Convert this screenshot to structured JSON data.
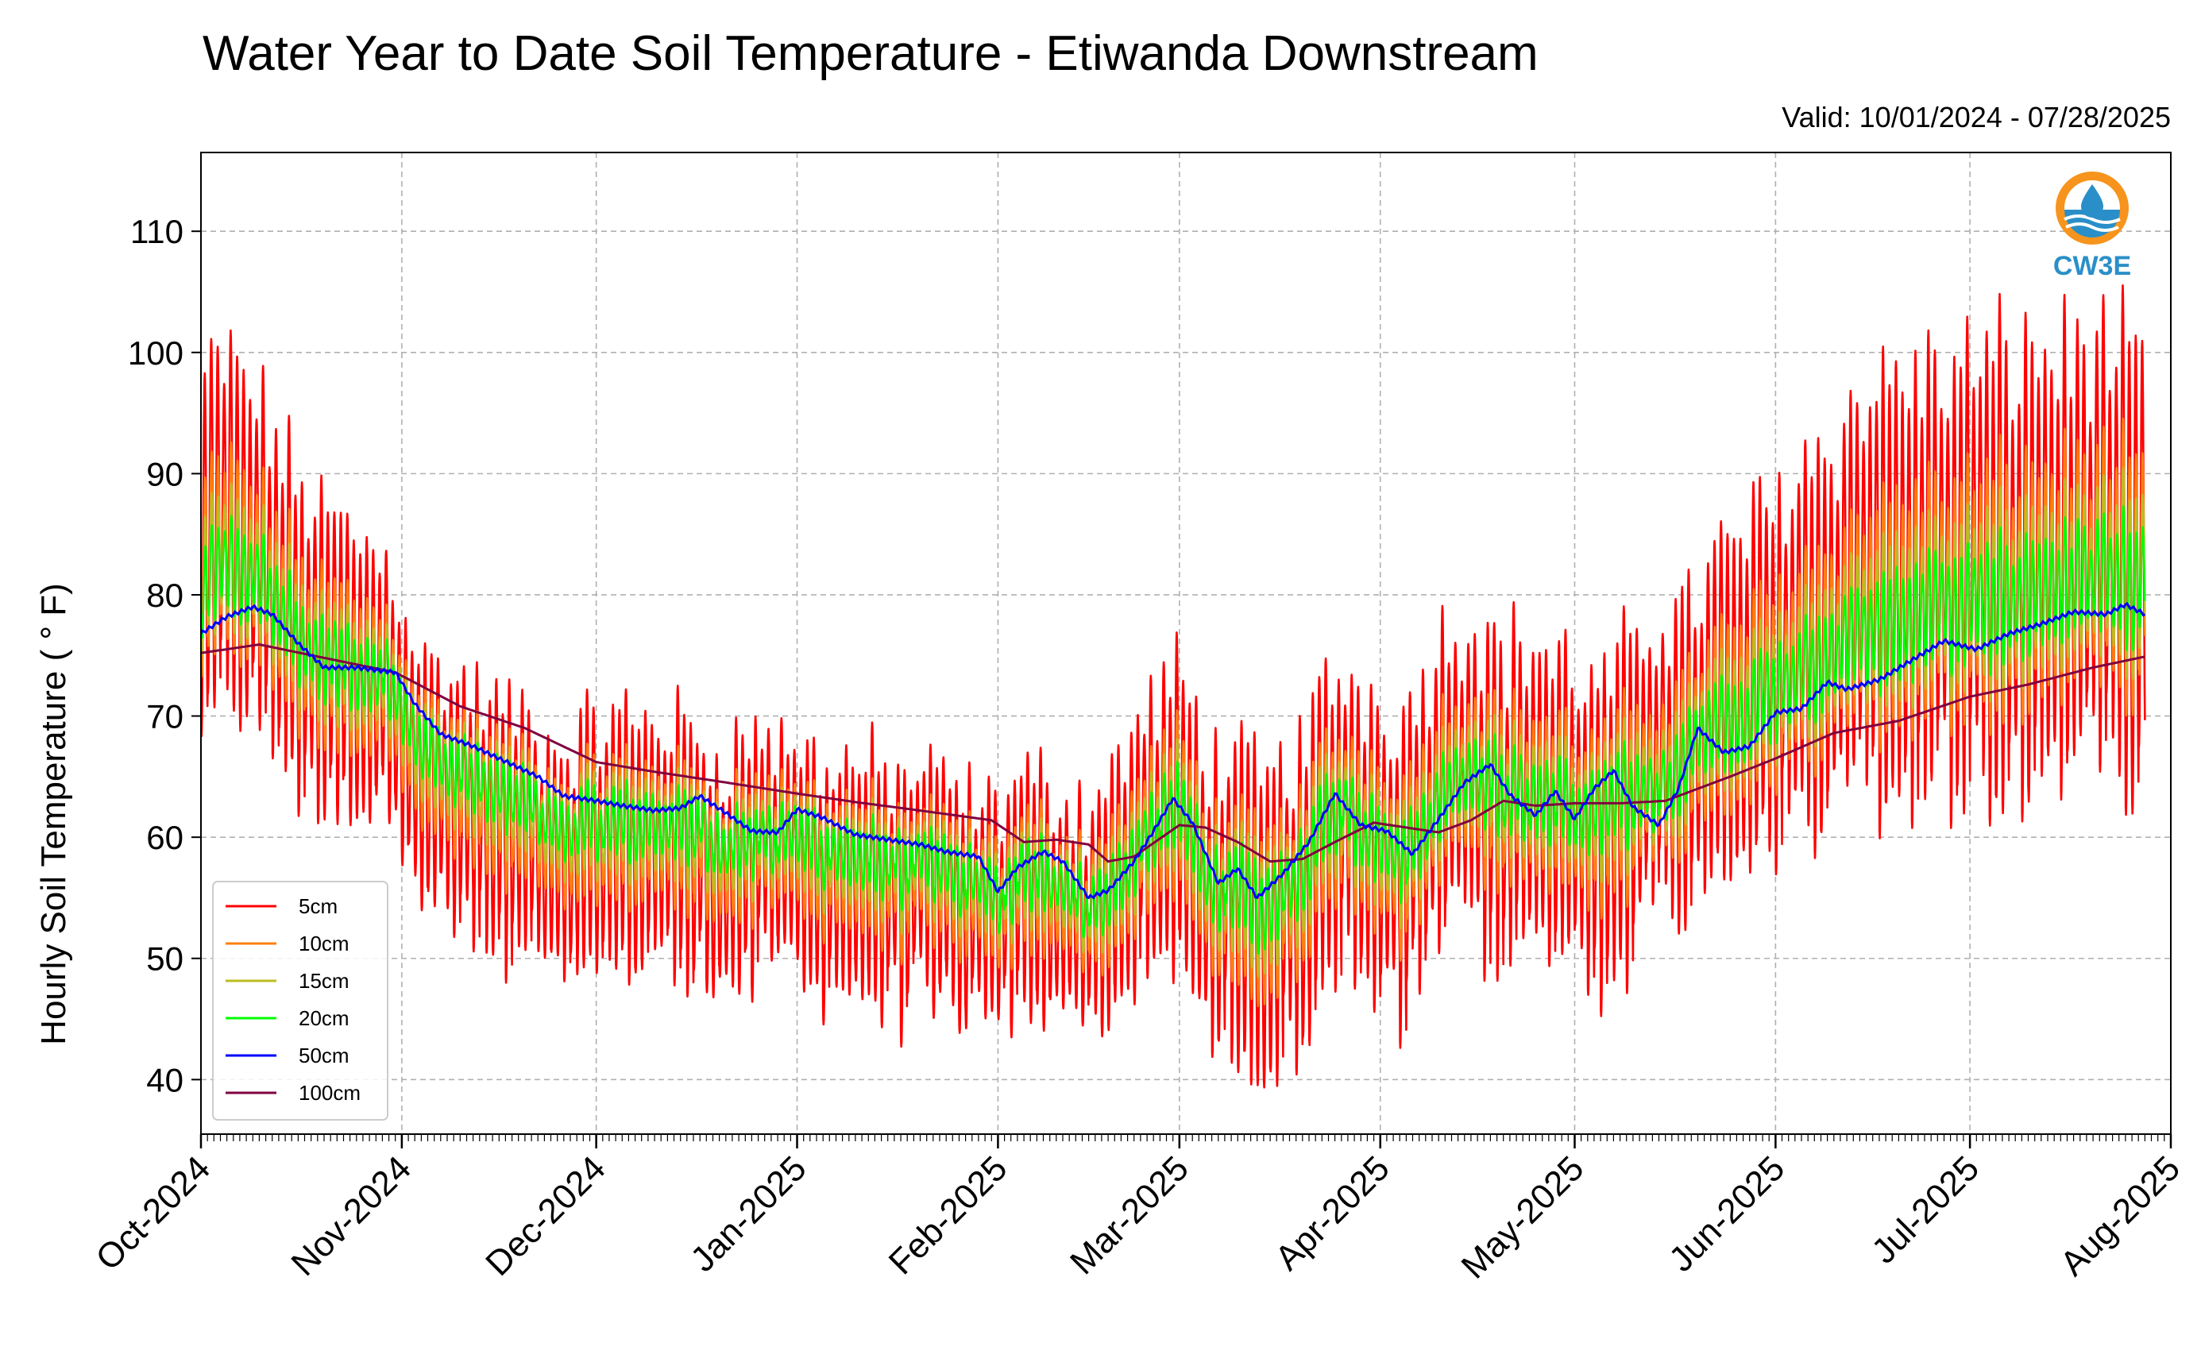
{
  "chart_data": {
    "type": "line",
    "title": "Water Year to Date Soil Temperature - Etiwanda Downstream",
    "subtitle": "Valid: 10/01/2024 - 07/28/2025",
    "ylabel": "Hourly Soil Temperature ( ° F)",
    "xlabel": "",
    "xlim": [
      "2024-10-01",
      "2025-08-01"
    ],
    "ylim": [
      35.5,
      116.5
    ],
    "yticks": [
      40,
      50,
      60,
      70,
      80,
      90,
      100,
      110
    ],
    "xticks": [
      {
        "date": "2024-10-01",
        "label": "Oct-2024"
      },
      {
        "date": "2024-11-01",
        "label": "Nov-2024"
      },
      {
        "date": "2024-12-01",
        "label": "Dec-2024"
      },
      {
        "date": "2025-01-01",
        "label": "Jan-2025"
      },
      {
        "date": "2025-02-01",
        "label": "Feb-2025"
      },
      {
        "date": "2025-03-01",
        "label": "Mar-2025"
      },
      {
        "date": "2025-04-01",
        "label": "Apr-2025"
      },
      {
        "date": "2025-05-01",
        "label": "May-2025"
      },
      {
        "date": "2025-06-01",
        "label": "Jun-2025"
      },
      {
        "date": "2025-07-01",
        "label": "Jul-2025"
      },
      {
        "date": "2025-08-01",
        "label": "Aug-2025"
      }
    ],
    "grid": true,
    "legend_position": "lower-left",
    "logo_text": "CW3E",
    "mean_daily_5cm": [
      [
        "2024-10-01",
        84
      ],
      [
        "2024-10-06",
        86
      ],
      [
        "2024-10-11",
        82
      ],
      [
        "2024-10-16",
        77
      ],
      [
        "2024-10-21",
        75
      ],
      [
        "2024-10-26",
        74
      ],
      [
        "2024-10-31",
        72
      ],
      [
        "2024-11-05",
        64
      ],
      [
        "2024-11-10",
        63
      ],
      [
        "2024-11-15",
        61
      ],
      [
        "2024-11-20",
        60
      ],
      [
        "2024-11-25",
        57
      ],
      [
        "2024-11-30",
        59
      ],
      [
        "2024-12-05",
        60
      ],
      [
        "2024-12-10",
        60
      ],
      [
        "2024-12-15",
        59
      ],
      [
        "2024-12-20",
        57
      ],
      [
        "2024-12-25",
        59
      ],
      [
        "2024-12-31",
        58
      ],
      [
        "2025-01-05",
        57
      ],
      [
        "2025-01-10",
        57
      ],
      [
        "2025-01-15",
        56
      ],
      [
        "2025-01-20",
        56
      ],
      [
        "2025-01-25",
        55
      ],
      [
        "2025-01-31",
        53
      ],
      [
        "2025-02-05",
        56
      ],
      [
        "2025-02-10",
        55
      ],
      [
        "2025-02-15",
        53
      ],
      [
        "2025-02-20",
        57
      ],
      [
        "2025-02-25",
        60
      ],
      [
        "2025-03-01",
        62
      ],
      [
        "2025-03-05",
        56
      ],
      [
        "2025-03-10",
        54
      ],
      [
        "2025-03-15",
        53
      ],
      [
        "2025-03-20",
        56
      ],
      [
        "2025-03-25",
        62
      ],
      [
        "2025-03-31",
        60
      ],
      [
        "2025-04-05",
        58
      ],
      [
        "2025-04-10",
        64
      ],
      [
        "2025-04-15",
        66
      ],
      [
        "2025-04-20",
        63
      ],
      [
        "2025-04-25",
        64
      ],
      [
        "2025-04-30",
        62
      ],
      [
        "2025-05-05",
        60
      ],
      [
        "2025-05-10",
        64
      ],
      [
        "2025-05-15",
        67
      ],
      [
        "2025-05-20",
        68
      ],
      [
        "2025-05-25",
        72
      ],
      [
        "2025-05-31",
        74
      ],
      [
        "2025-06-05",
        77
      ],
      [
        "2025-06-10",
        78
      ],
      [
        "2025-06-15",
        80
      ],
      [
        "2025-06-20",
        82
      ],
      [
        "2025-06-25",
        81
      ],
      [
        "2025-06-30",
        82
      ],
      [
        "2025-07-05",
        82
      ],
      [
        "2025-07-10",
        83
      ],
      [
        "2025-07-15",
        83
      ],
      [
        "2025-07-20",
        84
      ],
      [
        "2025-07-28",
        83
      ]
    ],
    "diurnal_half_range_5cm": [
      [
        "2024-10-01",
        17
      ],
      [
        "2024-10-31",
        12
      ],
      [
        "2024-11-15",
        12
      ],
      [
        "2024-12-15",
        12
      ],
      [
        "2025-01-15",
        11
      ],
      [
        "2025-02-15",
        11
      ],
      [
        "2025-03-01",
        14
      ],
      [
        "2025-03-20",
        14
      ],
      [
        "2025-04-15",
        15
      ],
      [
        "2025-05-15",
        14
      ],
      [
        "2025-06-01",
        16
      ],
      [
        "2025-06-15",
        20
      ],
      [
        "2025-07-10",
        21
      ],
      [
        "2025-07-28",
        19
      ]
    ],
    "series": [
      {
        "name": "5cm",
        "color": "#ff0000",
        "depth_fraction": 1.0
      },
      {
        "name": "10cm",
        "color": "#ff7f0e",
        "depth_fraction": 0.55
      },
      {
        "name": "15cm",
        "color": "#bcbd22",
        "depth_fraction": 0.38
      },
      {
        "name": "20cm",
        "color": "#00ff00",
        "depth_fraction": 0.25
      },
      {
        "name": "50cm",
        "color": "#0000ff",
        "values": [
          [
            "2024-10-01",
            76.8
          ],
          [
            "2024-10-05",
            78.2
          ],
          [
            "2024-10-09",
            79.0
          ],
          [
            "2024-10-12",
            78.4
          ],
          [
            "2024-10-16",
            76.0
          ],
          [
            "2024-10-20",
            74.0
          ],
          [
            "2024-10-25",
            74.0
          ],
          [
            "2024-10-31",
            73.6
          ],
          [
            "2024-11-03",
            71.0
          ],
          [
            "2024-11-07",
            68.5
          ],
          [
            "2024-11-12",
            67.5
          ],
          [
            "2024-11-16",
            66.5
          ],
          [
            "2024-11-22",
            65.0
          ],
          [
            "2024-11-26",
            63.4
          ],
          [
            "2024-12-01",
            63.0
          ],
          [
            "2024-12-05",
            62.6
          ],
          [
            "2024-12-10",
            62.2
          ],
          [
            "2024-12-14",
            62.4
          ],
          [
            "2024-12-17",
            63.4
          ],
          [
            "2024-12-21",
            62.0
          ],
          [
            "2024-12-25",
            60.5
          ],
          [
            "2024-12-29",
            60.4
          ],
          [
            "2025-01-01",
            62.3
          ],
          [
            "2025-01-05",
            61.6
          ],
          [
            "2025-01-10",
            60.2
          ],
          [
            "2025-01-15",
            59.8
          ],
          [
            "2025-01-20",
            59.4
          ],
          [
            "2025-01-24",
            58.8
          ],
          [
            "2025-01-29",
            58.4
          ],
          [
            "2025-02-01",
            55.5
          ],
          [
            "2025-02-04",
            57.5
          ],
          [
            "2025-02-08",
            58.8
          ],
          [
            "2025-02-11",
            58.0
          ],
          [
            "2025-02-15",
            55.0
          ],
          [
            "2025-02-18",
            55.6
          ],
          [
            "2025-02-22",
            58.0
          ],
          [
            "2025-02-25",
            60.5
          ],
          [
            "2025-02-28",
            63.2
          ],
          [
            "2025-03-03",
            61.2
          ],
          [
            "2025-03-07",
            56.2
          ],
          [
            "2025-03-10",
            57.4
          ],
          [
            "2025-03-13",
            55.0
          ],
          [
            "2025-03-17",
            57.0
          ],
          [
            "2025-03-21",
            59.6
          ],
          [
            "2025-03-25",
            63.6
          ],
          [
            "2025-03-29",
            61.0
          ],
          [
            "2025-04-02",
            60.5
          ],
          [
            "2025-04-06",
            58.6
          ],
          [
            "2025-04-10",
            61.5
          ],
          [
            "2025-04-14",
            64.5
          ],
          [
            "2025-04-18",
            66.0
          ],
          [
            "2025-04-21",
            63.5
          ],
          [
            "2025-04-25",
            61.8
          ],
          [
            "2025-04-28",
            63.8
          ],
          [
            "2025-05-01",
            61.5
          ],
          [
            "2025-05-04",
            64.0
          ],
          [
            "2025-05-07",
            65.5
          ],
          [
            "2025-05-10",
            62.5
          ],
          [
            "2025-05-14",
            61.0
          ],
          [
            "2025-05-17",
            64.0
          ],
          [
            "2025-05-20",
            69.0
          ],
          [
            "2025-05-24",
            67.0
          ],
          [
            "2025-05-28",
            67.5
          ],
          [
            "2025-06-01",
            70.3
          ],
          [
            "2025-06-05",
            70.6
          ],
          [
            "2025-06-09",
            72.8
          ],
          [
            "2025-06-12",
            72.2
          ],
          [
            "2025-06-17",
            73.0
          ],
          [
            "2025-06-22",
            74.6
          ],
          [
            "2025-06-27",
            76.2
          ],
          [
            "2025-07-02",
            75.5
          ],
          [
            "2025-07-07",
            76.8
          ],
          [
            "2025-07-12",
            77.6
          ],
          [
            "2025-07-17",
            78.6
          ],
          [
            "2025-07-22",
            78.4
          ],
          [
            "2025-07-25",
            79.2
          ],
          [
            "2025-07-28",
            78.4
          ]
        ]
      },
      {
        "name": "100cm",
        "color": "#800040",
        "values": [
          [
            "2024-10-01",
            75.2
          ],
          [
            "2024-10-10",
            75.9
          ],
          [
            "2024-10-20",
            74.8
          ],
          [
            "2024-10-31",
            73.6
          ],
          [
            "2024-11-10",
            70.8
          ],
          [
            "2024-11-20",
            69.0
          ],
          [
            "2024-12-01",
            66.2
          ],
          [
            "2024-12-10",
            65.4
          ],
          [
            "2024-12-20",
            64.6
          ],
          [
            "2025-01-01",
            63.6
          ],
          [
            "2025-01-10",
            62.9
          ],
          [
            "2025-01-20",
            62.2
          ],
          [
            "2025-01-31",
            61.4
          ],
          [
            "2025-02-05",
            59.6
          ],
          [
            "2025-02-10",
            59.8
          ],
          [
            "2025-02-15",
            59.4
          ],
          [
            "2025-02-18",
            58.0
          ],
          [
            "2025-02-22",
            58.4
          ],
          [
            "2025-03-01",
            61.0
          ],
          [
            "2025-03-05",
            60.8
          ],
          [
            "2025-03-10",
            59.6
          ],
          [
            "2025-03-15",
            58.0
          ],
          [
            "2025-03-20",
            58.2
          ],
          [
            "2025-03-25",
            59.6
          ],
          [
            "2025-03-31",
            61.2
          ],
          [
            "2025-04-05",
            60.8
          ],
          [
            "2025-04-10",
            60.4
          ],
          [
            "2025-04-15",
            61.4
          ],
          [
            "2025-04-20",
            63.0
          ],
          [
            "2025-04-25",
            62.6
          ],
          [
            "2025-05-01",
            62.8
          ],
          [
            "2025-05-08",
            62.8
          ],
          [
            "2025-05-15",
            63.0
          ],
          [
            "2025-05-20",
            64.0
          ],
          [
            "2025-05-25",
            65.0
          ],
          [
            "2025-06-01",
            66.5
          ],
          [
            "2025-06-10",
            68.6
          ],
          [
            "2025-06-20",
            69.6
          ],
          [
            "2025-07-01",
            71.6
          ],
          [
            "2025-07-10",
            72.6
          ],
          [
            "2025-07-20",
            74.0
          ],
          [
            "2025-07-28",
            74.9
          ]
        ]
      }
    ]
  },
  "colors": {
    "grid": "#b0b0b0",
    "axis": "#000000",
    "logo_orange": "#f7941d",
    "logo_blue": "#2a8fc8"
  }
}
